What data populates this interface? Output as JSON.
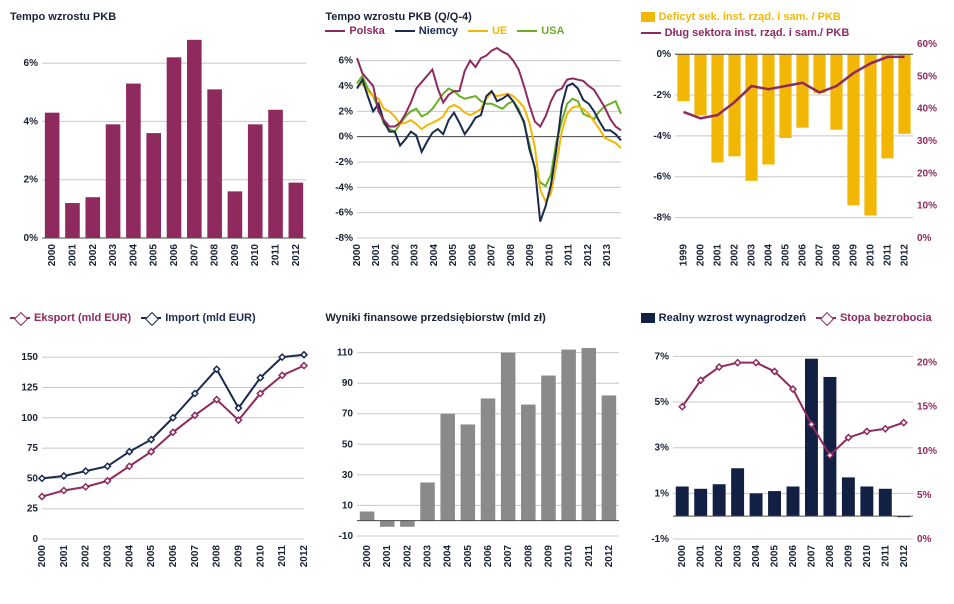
{
  "colors": {
    "maroon": "#8f2a5f",
    "navy": "#1a2b4f",
    "yellow": "#f2b705",
    "green": "#6ab023",
    "grey": "#8a8a8a",
    "darknavy": "#122044",
    "grid": "#c8c8c8",
    "axis": "#4a4a4a",
    "text": "#1a2233"
  },
  "chart1": {
    "type": "bar",
    "title": "Tempo wzrostu PKB",
    "x": [
      "2000",
      "2001",
      "2002",
      "2003",
      "2004",
      "2005",
      "2006",
      "2007",
      "2008",
      "2009",
      "2010",
      "2011",
      "2012"
    ],
    "values": [
      4.3,
      1.2,
      1.4,
      3.9,
      5.3,
      3.6,
      6.2,
      6.8,
      5.1,
      1.6,
      3.9,
      4.4,
      1.9
    ],
    "ylim": [
      0,
      7
    ],
    "yticks": [
      0,
      2,
      4,
      6
    ],
    "ytick_labels": [
      "0%",
      "2%",
      "4%",
      "6%"
    ],
    "bar_color": "#8f2a5f",
    "title_fontsize": 11,
    "tick_fontsize": 10,
    "y_grid_color": "#c8c8c8"
  },
  "chart2": {
    "type": "line",
    "title": "Tempo wzrostu PKB (Q/Q-4)",
    "legend": [
      {
        "label": "Polska",
        "color": "#8f2a5f"
      },
      {
        "label": "Niemcy",
        "color": "#1a2b4f"
      },
      {
        "label": "UE",
        "color": "#f2b705"
      },
      {
        "label": "USA",
        "color": "#6ab023"
      }
    ],
    "x_labels": [
      "2000",
      "2001",
      "2002",
      "2003",
      "2004",
      "2005",
      "2006",
      "2007",
      "2008",
      "2009",
      "2010",
      "2011",
      "2012",
      "2013"
    ],
    "ylim": [
      -8,
      7
    ],
    "yticks": [
      -8,
      -6,
      -4,
      -2,
      0,
      2,
      4,
      6
    ],
    "ytick_labels": [
      "-8%",
      "-6%",
      "-4%",
      "-2%",
      "0%",
      "2%",
      "4%",
      "6%"
    ],
    "line_width": 2,
    "tick_fontsize": 10,
    "series": {
      "polska": [
        6.2,
        5.0,
        4.5,
        4.0,
        2.0,
        1.3,
        0.8,
        0.8,
        1.1,
        1.8,
        2.7,
        3.8,
        4.3,
        4.8,
        5.3,
        3.8,
        2.7,
        3.3,
        3.6,
        3.6,
        5.2,
        6.0,
        5.5,
        6.2,
        6.4,
        6.8,
        7.0,
        6.7,
        6.5,
        6.0,
        5.3,
        4.0,
        2.5,
        1.2,
        0.8,
        1.6,
        2.8,
        3.6,
        3.8,
        4.5,
        4.6,
        4.5,
        4.4,
        4.0,
        3.7,
        3.0,
        2.3,
        1.4,
        0.8,
        0.5
      ],
      "niemcy": [
        3.8,
        4.5,
        3.2,
        2.0,
        2.6,
        1.2,
        0.4,
        0.4,
        -0.7,
        -0.2,
        0.4,
        0.1,
        -1.2,
        -0.4,
        0.3,
        0.6,
        0.2,
        1.3,
        1.9,
        1.1,
        0.2,
        0.8,
        1.5,
        1.7,
        3.2,
        3.6,
        2.8,
        3.0,
        3.3,
        2.8,
        2.0,
        1.2,
        -1.0,
        -2.4,
        -6.7,
        -5.5,
        -3.8,
        -1.0,
        2.4,
        4.0,
        4.2,
        3.8,
        2.9,
        2.6,
        2.0,
        1.2,
        0.5,
        0.5,
        0.2,
        -0.3
      ],
      "ue": [
        4.0,
        4.2,
        3.6,
        3.2,
        3.0,
        2.2,
        2.0,
        1.6,
        1.0,
        1.1,
        1.3,
        1.0,
        0.6,
        0.9,
        1.1,
        1.3,
        1.6,
        2.3,
        2.5,
        2.3,
        1.9,
        1.7,
        1.9,
        2.2,
        3.0,
        3.5,
        3.2,
        3.3,
        3.4,
        3.2,
        2.8,
        2.3,
        1.1,
        -0.8,
        -4.2,
        -5.1,
        -4.5,
        -2.2,
        0.4,
        1.8,
        2.3,
        2.4,
        2.2,
        1.8,
        1.2,
        0.6,
        -0.1,
        -0.3,
        -0.5,
        -0.9
      ],
      "usa": [
        4.2,
        4.8,
        3.8,
        3.2,
        2.2,
        1.0,
        0.6,
        0.4,
        1.0,
        1.6,
        2.0,
        2.2,
        1.6,
        1.8,
        2.2,
        2.8,
        3.4,
        3.8,
        3.6,
        3.2,
        3.0,
        3.1,
        3.2,
        2.8,
        2.6,
        2.6,
        2.4,
        2.2,
        2.6,
        2.8,
        2.2,
        1.0,
        -0.6,
        -2.6,
        -3.6,
        -3.9,
        -3.0,
        -0.4,
        1.2,
        2.6,
        3.0,
        2.8,
        1.8,
        1.6,
        1.4,
        2.0,
        2.4,
        2.6,
        2.8,
        1.8
      ]
    }
  },
  "chart3": {
    "type": "bar+line",
    "legend": [
      {
        "label": "Deficyt sek. inst. rząd. i sam. / PKB",
        "kind": "box",
        "color": "#f2b705"
      },
      {
        "label": "Dług sektora inst. rząd. i sam./ PKB",
        "kind": "line",
        "color": "#8f2a5f"
      }
    ],
    "x": [
      "1999",
      "2000",
      "2001",
      "2002",
      "2003",
      "2004",
      "2005",
      "2006",
      "2007",
      "2008",
      "2009",
      "2010",
      "2011",
      "2012"
    ],
    "bars": [
      -2.3,
      -3.0,
      -5.3,
      -5.0,
      -6.2,
      -5.4,
      -4.1,
      -3.6,
      -1.9,
      -3.7,
      -7.4,
      -7.9,
      -5.1,
      -3.9
    ],
    "line_r": [
      39,
      37,
      38,
      42,
      47,
      46,
      47,
      48,
      45,
      47,
      51,
      54,
      56,
      56
    ],
    "yl": {
      "lim": [
        -9,
        0.5
      ],
      "ticks": [
        -8,
        -6,
        -4,
        -2,
        0
      ],
      "labels": [
        "-8%",
        "-6%",
        "-4%",
        "-2%",
        "0%"
      ],
      "color": "#1a2233"
    },
    "yr": {
      "lim": [
        0,
        60
      ],
      "ticks": [
        0,
        10,
        20,
        30,
        40,
        50,
        60
      ],
      "labels": [
        "0%",
        "10%",
        "20%",
        "30%",
        "40%",
        "50%",
        "60%"
      ],
      "color": "#8f2a5f"
    },
    "bar_color": "#f2b705",
    "line_color": "#8f2a5f",
    "line_width": 2.5,
    "tick_fontsize": 10
  },
  "chart4": {
    "type": "line-markers",
    "legend": [
      {
        "label": "Eksport (mld EUR)",
        "color": "#8f2a5f"
      },
      {
        "label": "Import (mld EUR)",
        "color": "#1a2b4f"
      }
    ],
    "x": [
      "2000",
      "2001",
      "2002",
      "2003",
      "2004",
      "2005",
      "2006",
      "2007",
      "2008",
      "2009",
      "2010",
      "2011",
      "2012"
    ],
    "eksport": [
      35,
      40,
      43,
      48,
      60,
      72,
      88,
      102,
      115,
      98,
      120,
      135,
      143
    ],
    "import": [
      50,
      52,
      56,
      60,
      72,
      82,
      100,
      120,
      140,
      108,
      133,
      150,
      152
    ],
    "ylim": [
      0,
      160
    ],
    "yticks": [
      0,
      25,
      50,
      75,
      100,
      125,
      150
    ],
    "ytick_labels": [
      "0",
      "25",
      "50",
      "75",
      "100",
      "125",
      "150"
    ],
    "marker": "diamond",
    "marker_size": 6,
    "line_width": 2,
    "tick_fontsize": 10,
    "grid_color": "#c8c8c8"
  },
  "chart5": {
    "type": "bar",
    "title": "Wyniki finansowe przedsiębiorstw (mld zł)",
    "x": [
      "2000",
      "2001",
      "2002",
      "2003",
      "2004",
      "2005",
      "2006",
      "2007",
      "2008",
      "2009",
      "2010",
      "2011",
      "2012"
    ],
    "values": [
      6,
      -4,
      -4,
      25,
      70,
      63,
      80,
      110,
      76,
      95,
      112,
      113,
      82
    ],
    "ylim": [
      -12,
      115
    ],
    "yticks": [
      -10,
      10,
      30,
      50,
      70,
      90,
      110
    ],
    "ytick_labels": [
      "-10",
      "10",
      "30",
      "50",
      "70",
      "90",
      "110"
    ],
    "bar_color": "#8a8a8a",
    "tick_fontsize": 10,
    "title_fontsize": 11
  },
  "chart6": {
    "type": "bar+line",
    "legend": [
      {
        "label": "Realny wzrost wynagrodzeń",
        "kind": "box",
        "color": "#122044"
      },
      {
        "label": "Stopa bezrobocia",
        "kind": "line",
        "color": "#8f2a5f"
      }
    ],
    "x": [
      "2000",
      "2001",
      "2002",
      "2003",
      "2004",
      "2005",
      "2006",
      "2007",
      "2008",
      "2009",
      "2010",
      "2011",
      "2012"
    ],
    "bars": [
      1.3,
      1.2,
      1.4,
      2.1,
      1.0,
      1.1,
      1.3,
      6.9,
      6.1,
      1.7,
      1.3,
      1.2,
      0.0
    ],
    "line_r": [
      15,
      18,
      19.5,
      20,
      20,
      19,
      17,
      13,
      9.5,
      11.5,
      12.2,
      12.5,
      13.2
    ],
    "yl": {
      "lim": [
        -1,
        7.5
      ],
      "ticks": [
        -1,
        1,
        3,
        5,
        7
      ],
      "labels": [
        "-1%",
        "1%",
        "3%",
        "5%",
        "7%"
      ],
      "color": "#1a2233"
    },
    "yr": {
      "lim": [
        0,
        22
      ],
      "ticks": [
        0,
        5,
        10,
        15,
        20
      ],
      "labels": [
        "0%",
        "5%",
        "10%",
        "15%",
        "20%"
      ],
      "color": "#8f2a5f"
    },
    "bar_color": "#122044",
    "line_color": "#8f2a5f",
    "line_width": 2,
    "marker": "diamond",
    "marker_size": 6,
    "tick_fontsize": 10
  }
}
